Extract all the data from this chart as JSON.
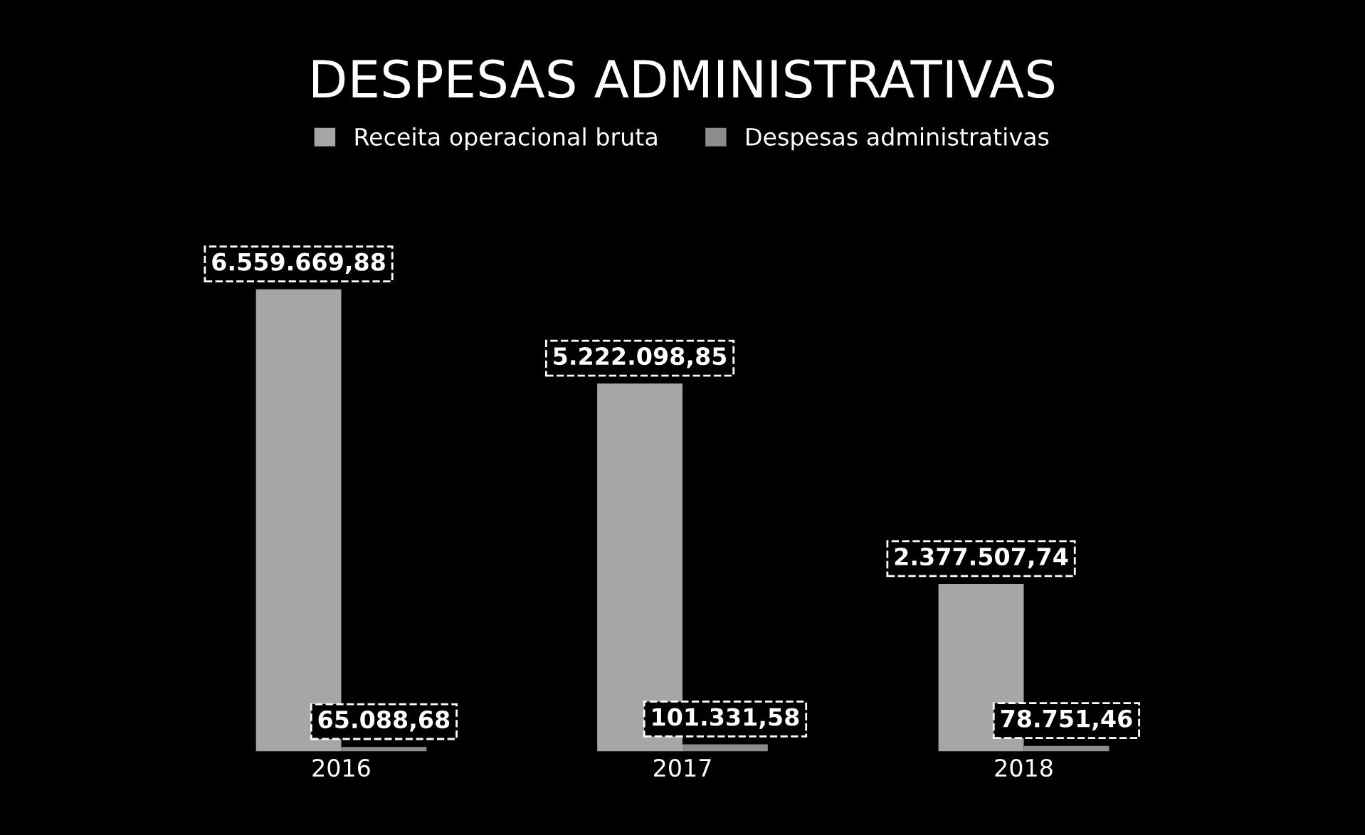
{
  "chart_data": {
    "type": "bar",
    "title": "DESPESAS ADMINISTRATIVAS",
    "categories": [
      "2016",
      "2017",
      "2018"
    ],
    "series": [
      {
        "name": "Receita operacional bruta",
        "color": "#a6a6a6",
        "values": [
          6559669.88,
          5222098.85,
          2377507.74
        ],
        "value_labels": [
          "6.559.669,88",
          "5.222.098,85",
          "2.377.507,74"
        ]
      },
      {
        "name": "Despesas administrativas",
        "color": "#8c8c8c",
        "values": [
          65088.68,
          101331.58,
          78751.46
        ],
        "value_labels": [
          "65.088,68",
          "101.331,58",
          "78.751,46"
        ]
      }
    ],
    "legend": "top",
    "grid": false
  }
}
